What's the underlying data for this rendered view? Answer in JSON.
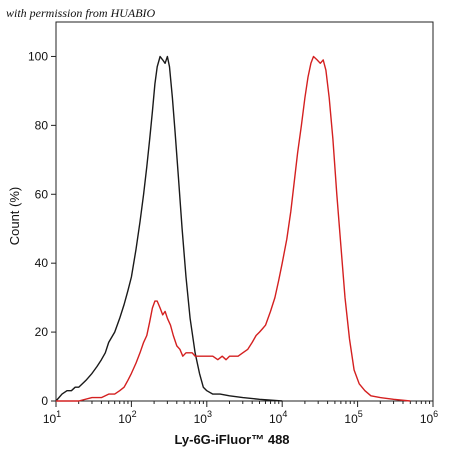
{
  "watermark": "with permission from HUABIO",
  "chart_data": {
    "type": "line",
    "xlabel": "Ly-6G-iFluor™ 488",
    "ylabel": "Count  (%)",
    "xscale": "log",
    "xlim": [
      10,
      1000000
    ],
    "ylim": [
      0,
      110
    ],
    "y_ticks": [
      0,
      20,
      40,
      60,
      80,
      100
    ],
    "x_tick_labels": [
      {
        "base": "10",
        "exp": "1"
      },
      {
        "base": "10",
        "exp": "2"
      },
      {
        "base": "10",
        "exp": "3"
      },
      {
        "base": "10",
        "exp": "4"
      },
      {
        "base": "10",
        "exp": "5"
      },
      {
        "base": "10",
        "exp": "6"
      }
    ],
    "grid": false,
    "series": [
      {
        "color": "#1a1a1a",
        "points": [
          [
            10,
            0
          ],
          [
            12,
            2
          ],
          [
            14,
            3
          ],
          [
            16,
            3
          ],
          [
            18,
            4
          ],
          [
            20,
            4
          ],
          [
            25,
            6
          ],
          [
            30,
            8
          ],
          [
            35,
            10
          ],
          [
            40,
            12
          ],
          [
            45,
            14
          ],
          [
            50,
            17
          ],
          [
            60,
            20
          ],
          [
            70,
            24
          ],
          [
            80,
            28
          ],
          [
            90,
            32
          ],
          [
            100,
            36
          ],
          [
            115,
            44
          ],
          [
            130,
            52
          ],
          [
            145,
            60
          ],
          [
            160,
            68
          ],
          [
            175,
            76
          ],
          [
            190,
            84
          ],
          [
            205,
            92
          ],
          [
            220,
            97
          ],
          [
            240,
            100
          ],
          [
            260,
            99
          ],
          [
            280,
            98
          ],
          [
            300,
            100
          ],
          [
            320,
            97
          ],
          [
            350,
            88
          ],
          [
            380,
            78
          ],
          [
            420,
            65
          ],
          [
            470,
            50
          ],
          [
            530,
            36
          ],
          [
            600,
            24
          ],
          [
            700,
            14
          ],
          [
            800,
            8
          ],
          [
            900,
            4
          ],
          [
            1000,
            3
          ],
          [
            1200,
            2
          ],
          [
            1500,
            2
          ],
          [
            2000,
            1.5
          ],
          [
            3000,
            1
          ],
          [
            5000,
            0.5
          ],
          [
            10000,
            0
          ]
        ]
      },
      {
        "color": "#d42020",
        "points": [
          [
            10,
            0
          ],
          [
            20,
            0
          ],
          [
            30,
            1
          ],
          [
            40,
            1
          ],
          [
            50,
            2
          ],
          [
            60,
            2
          ],
          [
            70,
            3
          ],
          [
            80,
            4
          ],
          [
            90,
            6
          ],
          [
            100,
            8
          ],
          [
            115,
            11
          ],
          [
            130,
            14
          ],
          [
            145,
            17
          ],
          [
            160,
            19
          ],
          [
            175,
            23
          ],
          [
            190,
            27
          ],
          [
            205,
            29
          ],
          [
            220,
            29
          ],
          [
            240,
            27
          ],
          [
            260,
            25
          ],
          [
            280,
            26
          ],
          [
            300,
            24
          ],
          [
            330,
            22
          ],
          [
            360,
            19
          ],
          [
            400,
            16
          ],
          [
            440,
            15
          ],
          [
            480,
            13
          ],
          [
            530,
            14
          ],
          [
            580,
            14
          ],
          [
            640,
            14
          ],
          [
            700,
            13
          ],
          [
            800,
            13
          ],
          [
            900,
            13
          ],
          [
            1000,
            13
          ],
          [
            1200,
            13
          ],
          [
            1400,
            12
          ],
          [
            1600,
            13
          ],
          [
            1800,
            12
          ],
          [
            2000,
            13
          ],
          [
            2300,
            13
          ],
          [
            2600,
            13
          ],
          [
            3000,
            14
          ],
          [
            3500,
            15
          ],
          [
            4000,
            17
          ],
          [
            4500,
            19
          ],
          [
            5000,
            20
          ],
          [
            5500,
            21
          ],
          [
            6000,
            22
          ],
          [
            7000,
            26
          ],
          [
            8000,
            30
          ],
          [
            9000,
            35
          ],
          [
            10000,
            40
          ],
          [
            11500,
            47
          ],
          [
            13000,
            55
          ],
          [
            14500,
            64
          ],
          [
            16000,
            72
          ],
          [
            18000,
            80
          ],
          [
            20000,
            88
          ],
          [
            22000,
            94
          ],
          [
            24000,
            98
          ],
          [
            26000,
            100
          ],
          [
            29000,
            99
          ],
          [
            32000,
            98
          ],
          [
            35000,
            99
          ],
          [
            38000,
            96
          ],
          [
            42000,
            88
          ],
          [
            47000,
            76
          ],
          [
            53000,
            60
          ],
          [
            60000,
            45
          ],
          [
            68000,
            30
          ],
          [
            78000,
            18
          ],
          [
            90000,
            9
          ],
          [
            105000,
            5
          ],
          [
            125000,
            3
          ],
          [
            150000,
            1.5
          ],
          [
            200000,
            1
          ],
          [
            300000,
            0.5
          ],
          [
            500000,
            0
          ]
        ]
      }
    ]
  }
}
